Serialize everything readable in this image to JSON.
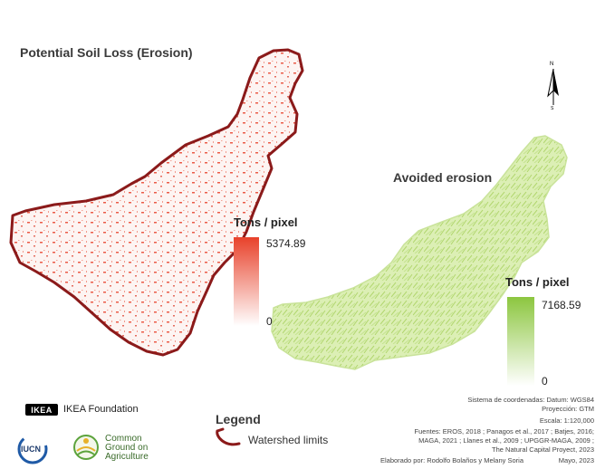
{
  "map_left": {
    "title": "Potential Soil Loss (Erosion)",
    "unit": "Tons / pixel",
    "max_value": "5374.89",
    "min_value": "0",
    "ramp_colors": [
      "#e8412a",
      "#ffffff"
    ],
    "border_color": "#8b1a1a"
  },
  "map_right": {
    "title": "Avoided erosion",
    "unit": "Tons / pixel",
    "max_value": "7168.59",
    "min_value": "0",
    "ramp_colors": [
      "#8cc63f",
      "#ffffff"
    ],
    "fill_color": "#dbefb2"
  },
  "north_arrow": {
    "top_letter": "N",
    "bottom_letter": "S",
    "icon": "north-arrow-icon"
  },
  "legend": {
    "title": "Legend",
    "item_label": "Watershed limits"
  },
  "logos": {
    "ikea_mark": "IKEA",
    "ikea_text": "IKEA Foundation",
    "iucn_text": "IUCN",
    "cga_line1": "Common",
    "cga_line2": "Ground on",
    "cga_line3": "Agriculture"
  },
  "metadata": {
    "crs": "Sistema de coordenadas: Datum: WGS84",
    "projection": "Proyección: GTM",
    "scale_label": "Escala:",
    "scale_value": "1:120,000",
    "sources_1": "Fuentes: EROS, 2018 ; Panagos et al., 2017 ; Batjes, 2016;",
    "sources_2": "MAGA, 2021 ; Llanes et al., 2009 ; UPGGR-MAGA, 2009 ;",
    "sources_3": "The Natural Capital Proyect, 2023",
    "author": "Elaborado por: Rodolfo Bolaños y Melany Soria",
    "date": "Mayo, 2023"
  }
}
